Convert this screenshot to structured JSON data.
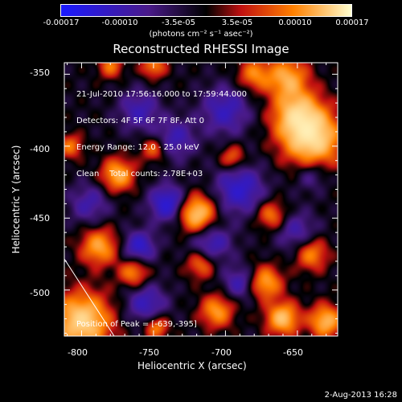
{
  "colorbar": {
    "ticks": [
      "-0.00017",
      "-0.00010",
      "-3.5e-05",
      "3.5e-05",
      "0.00010",
      "0.00017"
    ],
    "units": "(photons cm⁻² s⁻¹ asec⁻²)",
    "range": [
      -0.00017,
      0.00017
    ],
    "colors": [
      "#1a1aff",
      "#4a1a8a",
      "#000000",
      "#c01010",
      "#ff8000",
      "#ffffd0"
    ]
  },
  "chart_data": {
    "type": "heatmap",
    "title": "Reconstructed RHESSI Image",
    "xlabel": "Heliocentric X (arcsec)",
    "ylabel": "Heliocentric Y (arcsec)",
    "xlim": [
      -812,
      -622
    ],
    "ylim": [
      -532,
      -342
    ],
    "x_ticks": [
      -800,
      -750,
      -700,
      -650
    ],
    "y_ticks": [
      -350,
      -400,
      -450,
      -500
    ],
    "x_tick_labels": [
      "-800",
      "-750",
      "-700",
      "-650"
    ],
    "y_tick_labels": [
      "-350",
      "-400",
      "-450",
      "-500"
    ],
    "annotations": [
      "21-Jul-2010 17:56:16.000 to 17:59:44.000",
      "Detectors: 4F 5F 6F 7F 8F, Att 0",
      "Energy Range: 12.0 - 25.0 keV",
      "Clean    Total counts: 2.78E+03"
    ],
    "peak_label": "Position of Peak = [-639,-395]",
    "peak": [
      -639,
      -395
    ],
    "sources": [
      {
        "x": -800,
        "y": -522,
        "amp": 1.0,
        "w": 14
      },
      {
        "x": -639,
        "y": -395,
        "amp": 1.0,
        "w": 14
      },
      {
        "x": -650,
        "y": -378,
        "amp": 0.8,
        "w": 12
      },
      {
        "x": -657,
        "y": -352,
        "amp": 0.7,
        "w": 10
      },
      {
        "x": -680,
        "y": -350,
        "amp": 0.55,
        "w": 8
      },
      {
        "x": -720,
        "y": -447,
        "amp": 0.95,
        "w": 9
      },
      {
        "x": -775,
        "y": -420,
        "amp": 0.75,
        "w": 8
      },
      {
        "x": -788,
        "y": -470,
        "amp": 0.7,
        "w": 9
      },
      {
        "x": -764,
        "y": -488,
        "amp": 0.6,
        "w": 7
      },
      {
        "x": -750,
        "y": -402,
        "amp": 0.5,
        "w": 6
      },
      {
        "x": -695,
        "y": -408,
        "amp": 0.5,
        "w": 6
      },
      {
        "x": -668,
        "y": -448,
        "amp": 0.55,
        "w": 7
      },
      {
        "x": -717,
        "y": -482,
        "amp": 0.55,
        "w": 7
      },
      {
        "x": -672,
        "y": -495,
        "amp": 0.7,
        "w": 8
      },
      {
        "x": -640,
        "y": -475,
        "amp": 0.6,
        "w": 8
      },
      {
        "x": -706,
        "y": -515,
        "amp": 0.65,
        "w": 8
      },
      {
        "x": -660,
        "y": -520,
        "amp": 0.85,
        "w": 8
      },
      {
        "x": -630,
        "y": -522,
        "amp": 0.8,
        "w": 8
      },
      {
        "x": -748,
        "y": -526,
        "amp": 0.6,
        "w": 6
      },
      {
        "x": -780,
        "y": -344,
        "amp": 0.5,
        "w": 6
      },
      {
        "x": -750,
        "y": -344,
        "amp": 0.55,
        "w": 6
      },
      {
        "x": -808,
        "y": -400,
        "amp": 0.5,
        "w": 6
      },
      {
        "x": -740,
        "y": -440,
        "amp": -0.7,
        "w": 9
      },
      {
        "x": -760,
        "y": -470,
        "amp": -0.6,
        "w": 8
      },
      {
        "x": -710,
        "y": -468,
        "amp": -0.5,
        "w": 10
      },
      {
        "x": -690,
        "y": -430,
        "amp": -0.6,
        "w": 12
      },
      {
        "x": -735,
        "y": -395,
        "amp": -0.45,
        "w": 10
      },
      {
        "x": -700,
        "y": -375,
        "amp": -0.5,
        "w": 12
      },
      {
        "x": -760,
        "y": -375,
        "amp": -0.45,
        "w": 10
      },
      {
        "x": -795,
        "y": -440,
        "amp": -0.4,
        "w": 10
      },
      {
        "x": -755,
        "y": -510,
        "amp": -0.5,
        "w": 10
      },
      {
        "x": -690,
        "y": -495,
        "amp": -0.45,
        "w": 8
      },
      {
        "x": -650,
        "y": -460,
        "amp": -0.4,
        "w": 10
      },
      {
        "x": -640,
        "y": -420,
        "amp": -0.35,
        "w": 8
      }
    ]
  },
  "footer": {
    "timestamp": "2-Aug-2013 16:28"
  }
}
